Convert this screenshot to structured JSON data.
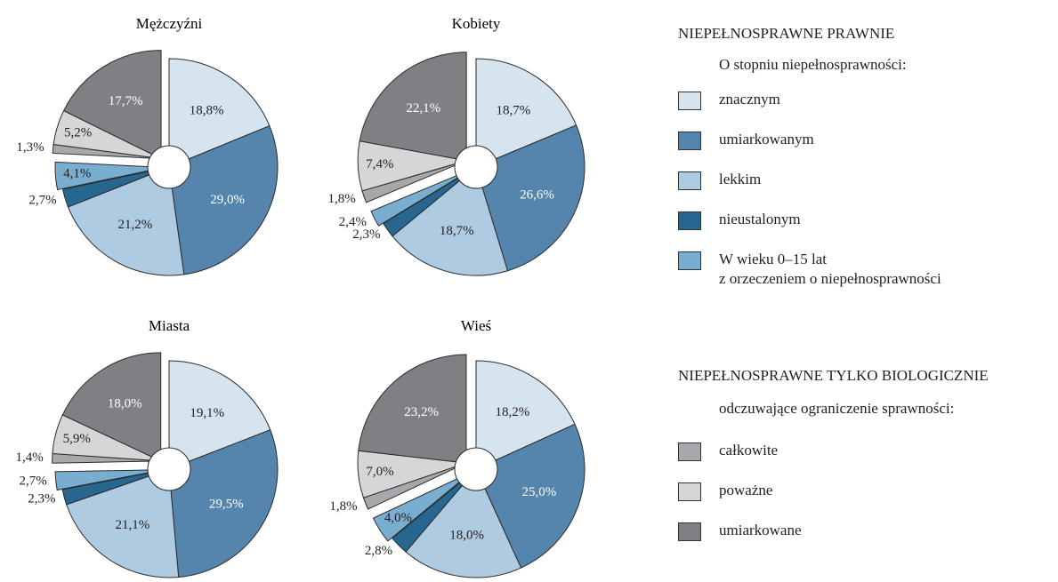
{
  "chart_data": [
    {
      "type": "pie",
      "title": "Mężczyźni",
      "values": [
        18.8,
        29.0,
        21.2,
        2.7,
        4.1,
        1.3,
        5.2,
        17.7
      ],
      "value_labels": [
        "18,8%",
        "29,0%",
        "21,2%",
        "2,7%",
        "4,1%",
        "1,3%",
        "5,2%",
        "17,7%"
      ]
    },
    {
      "type": "pie",
      "title": "Kobiety",
      "values": [
        18.7,
        26.6,
        18.7,
        2.3,
        2.4,
        1.8,
        7.4,
        22.1
      ],
      "value_labels": [
        "18,7%",
        "26,6%",
        "18,7%",
        "2,3%",
        "2,4%",
        "1,8%",
        "7,4%",
        "22,1%"
      ]
    },
    {
      "type": "pie",
      "title": "Miasta",
      "values": [
        19.1,
        29.5,
        21.1,
        2.3,
        2.7,
        1.4,
        5.9,
        18.0
      ],
      "value_labels": [
        "19,1%",
        "29,5%",
        "21,1%",
        "2,3%",
        "2,7%",
        "1,4%",
        "5,9%",
        "18,0%"
      ]
    },
    {
      "type": "pie",
      "title": "Wieś",
      "values": [
        18.2,
        25.0,
        18.0,
        2.8,
        4.0,
        1.8,
        7.0,
        23.2
      ],
      "value_labels": [
        "18,2%",
        "25,0%",
        "18,0%",
        "2,8%",
        "4,0%",
        "1,8%",
        "7,0%",
        "23,2%"
      ]
    }
  ],
  "legend": {
    "groups": [
      {
        "title": "NIEPEŁNOSPRAWNE PRAWNIE",
        "subtitle": "O stopniu niepełnosprawności:",
        "items": [
          {
            "label": "znacznym",
            "color": "#d6e4f0"
          },
          {
            "label": "umiarkowanym",
            "color": "#5585ad"
          },
          {
            "label": "lekkim",
            "color": "#aecbe2"
          },
          {
            "label": "nieustalonym",
            "color": "#26668f"
          },
          {
            "label": "W wieku 0–15 lat\nz orzeczeniem o niepełnosprawności",
            "color": "#7aaed1"
          }
        ]
      },
      {
        "title": "NIEPEŁNOSPRAWNE TYLKO BIOLOGICZNIE",
        "subtitle": "odczuwające ograniczenie sprawności:",
        "items": [
          {
            "label": "całkowite",
            "color": "#a6a8ab"
          },
          {
            "label": "poważne",
            "color": "#d5d6d8"
          },
          {
            "label": "umiarkowane",
            "color": "#7f8083"
          }
        ]
      }
    ]
  }
}
